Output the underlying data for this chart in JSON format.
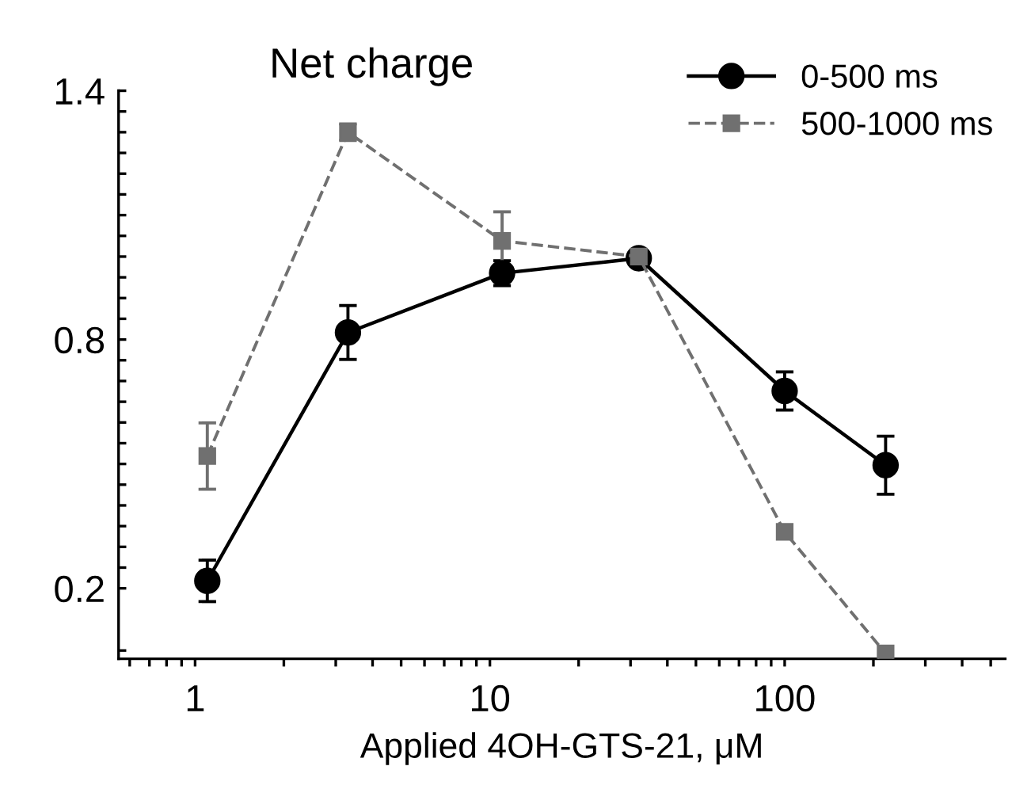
{
  "chart_data": {
    "type": "line",
    "title": "Net charge",
    "xlabel": "Applied 4OH-GTS-21, μM",
    "log": "x",
    "x": [
      1.1,
      3.3,
      11,
      32,
      100,
      220
    ],
    "xlim": [
      0.55,
      560
    ],
    "xticks": [
      {
        "value": 0.6,
        "label": null
      },
      {
        "value": 0.7,
        "label": null
      },
      {
        "value": 0.8,
        "label": null
      },
      {
        "value": 0.9,
        "label": null
      },
      1,
      {
        "value": 2,
        "label": null
      },
      {
        "value": 3,
        "label": null
      },
      {
        "value": 4,
        "label": null
      },
      {
        "value": 5,
        "label": null
      },
      {
        "value": 6,
        "label": null
      },
      {
        "value": 7,
        "label": null
      },
      {
        "value": 8,
        "label": null
      },
      {
        "value": 9,
        "label": null
      },
      10,
      {
        "value": 20,
        "label": null
      },
      {
        "value": 30,
        "label": null
      },
      {
        "value": 40,
        "label": null
      },
      {
        "value": 50,
        "label": null
      },
      {
        "value": 60,
        "label": null
      },
      {
        "value": 70,
        "label": null
      },
      {
        "value": 80,
        "label": null
      },
      {
        "value": 90,
        "label": null
      },
      100,
      {
        "value": 200,
        "label": null
      },
      {
        "value": 300,
        "label": null
      },
      {
        "value": 400,
        "label": null
      },
      {
        "value": 500,
        "label": null
      }
    ],
    "ylim": [
      0.03,
      1.4
    ],
    "yticks": [
      {
        "value": 0.05,
        "label": null
      },
      0.2,
      {
        "value": 0.25,
        "label": null
      },
      {
        "value": 0.3,
        "label": null
      },
      {
        "value": 0.35,
        "label": null
      },
      {
        "value": 0.4,
        "label": null
      },
      {
        "value": 0.45,
        "label": null
      },
      {
        "value": 0.5,
        "label": null
      },
      {
        "value": 0.55,
        "label": null
      },
      {
        "value": 0.6,
        "label": null
      },
      {
        "value": 0.65,
        "label": null
      },
      {
        "value": 0.7,
        "label": null
      },
      {
        "value": 0.75,
        "label": null
      },
      0.8,
      {
        "value": 0.85,
        "label": null
      },
      {
        "value": 0.9,
        "label": null
      },
      {
        "value": 0.95,
        "label": null
      },
      {
        "value": 1.0,
        "label": null
      },
      {
        "value": 1.05,
        "label": null
      },
      {
        "value": 1.1,
        "label": null
      },
      {
        "value": 1.15,
        "label": null
      },
      {
        "value": 1.2,
        "label": null
      },
      {
        "value": 1.25,
        "label": null
      },
      {
        "value": 1.3,
        "label": null
      },
      {
        "value": 1.35,
        "label": null
      },
      1.4
    ],
    "grid": false,
    "legend": "top right",
    "series": [
      {
        "name": "0-500 ms",
        "color": "#000000",
        "marker": "circle",
        "line_style": "solid",
        "values": [
          0.218,
          0.817,
          0.96,
          0.996,
          0.676,
          0.497
        ],
        "errors": [
          0.05,
          0.065,
          0.03,
          null,
          0.046,
          0.07
        ]
      },
      {
        "name": "500-1000 ms",
        "color": "#707070",
        "marker": "square",
        "line_style": "dashed",
        "values": [
          0.519,
          1.3,
          1.038,
          1.0,
          0.336,
          0.043
        ],
        "errors": [
          0.08,
          0.02,
          0.07,
          null,
          null,
          null
        ]
      }
    ]
  }
}
